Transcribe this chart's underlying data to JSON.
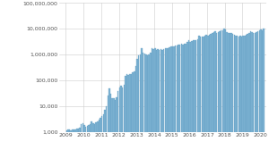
{
  "title": "",
  "xlabel": "",
  "ylabel": "",
  "bar_color": "#7fb3d3",
  "bar_edge_color": "#5a9abf",
  "background_color": "#ffffff",
  "grid_color": "#cccccc",
  "ylim": [
    1000,
    100000000
  ],
  "xlim": [
    2008.62,
    2020.35
  ],
  "yticks": [
    1000,
    10000,
    100000,
    1000000,
    10000000,
    100000000
  ],
  "ytick_labels": [
    "1,000",
    "10,000",
    "100,000",
    "1,000,000",
    "10,000,000",
    "100,000,000"
  ],
  "xtick_years": [
    2009,
    2010,
    2011,
    2012,
    2013,
    2014,
    2015,
    2016,
    2017,
    2018,
    2019,
    2020
  ],
  "monthly_data": {
    "2009-01": 1200,
    "2009-02": 1300,
    "2009-03": 1250,
    "2009-04": 1200,
    "2009-05": 1300,
    "2009-06": 1250,
    "2009-07": 1300,
    "2009-08": 1350,
    "2009-09": 1400,
    "2009-10": 1500,
    "2009-11": 2000,
    "2009-12": 2200,
    "2010-01": 1800,
    "2010-02": 1600,
    "2010-03": 1700,
    "2010-04": 1900,
    "2010-05": 2000,
    "2010-06": 2500,
    "2010-07": 2200,
    "2010-08": 2100,
    "2010-09": 2300,
    "2010-10": 2500,
    "2010-11": 3000,
    "2010-12": 3500,
    "2011-01": 4000,
    "2011-02": 5000,
    "2011-03": 7000,
    "2011-04": 10000,
    "2011-05": 25000,
    "2011-06": 50000,
    "2011-07": 30000,
    "2011-08": 20000,
    "2011-09": 20000,
    "2011-10": 18000,
    "2011-11": 22000,
    "2011-12": 40000,
    "2012-01": 55000,
    "2012-02": 60000,
    "2012-03": 55000,
    "2012-04": 65000,
    "2012-05": 150000,
    "2012-06": 180000,
    "2012-07": 160000,
    "2012-08": 170000,
    "2012-09": 180000,
    "2012-10": 200000,
    "2012-11": 220000,
    "2012-12": 350000,
    "2013-01": 700000,
    "2013-02": 900000,
    "2013-03": 1000000,
    "2013-04": 1800000,
    "2013-05": 1200000,
    "2013-06": 1100000,
    "2013-07": 1000000,
    "2013-08": 900000,
    "2013-09": 1000000,
    "2013-10": 1200000,
    "2013-11": 1800000,
    "2013-12": 1600000,
    "2014-01": 1700000,
    "2014-02": 1500000,
    "2014-03": 1600000,
    "2014-04": 1500000,
    "2014-05": 1600000,
    "2014-06": 1500000,
    "2014-07": 1600000,
    "2014-08": 1700000,
    "2014-09": 1700000,
    "2014-10": 1800000,
    "2014-11": 1900000,
    "2014-12": 2000000,
    "2015-01": 2000000,
    "2015-02": 2100000,
    "2015-03": 2200000,
    "2015-04": 2300000,
    "2015-05": 2400000,
    "2015-06": 2500000,
    "2015-07": 2600000,
    "2015-08": 2500000,
    "2015-09": 2600000,
    "2015-10": 2700000,
    "2015-11": 3000000,
    "2015-12": 3500000,
    "2016-01": 3200000,
    "2016-02": 3300000,
    "2016-03": 3500000,
    "2016-04": 3600000,
    "2016-05": 3700000,
    "2016-06": 4000000,
    "2016-07": 5500000,
    "2016-08": 5000000,
    "2016-09": 4800000,
    "2016-10": 5000000,
    "2016-11": 5500000,
    "2016-12": 6000000,
    "2017-01": 5500000,
    "2017-02": 6000000,
    "2017-03": 6500000,
    "2017-04": 7000000,
    "2017-05": 7500000,
    "2017-06": 8000000,
    "2017-07": 7000000,
    "2017-08": 7500000,
    "2017-09": 8000000,
    "2017-10": 8500000,
    "2017-11": 9000000,
    "2017-12": 10000000,
    "2018-01": 9500000,
    "2018-02": 7500000,
    "2018-03": 7000000,
    "2018-04": 7000000,
    "2018-05": 7000000,
    "2018-06": 6500000,
    "2018-07": 6000000,
    "2018-08": 5500000,
    "2018-09": 5500000,
    "2018-10": 5000000,
    "2018-11": 5500000,
    "2018-12": 5000000,
    "2019-01": 5500000,
    "2019-02": 5500000,
    "2019-03": 6000000,
    "2019-04": 6500000,
    "2019-05": 7000000,
    "2019-06": 8000000,
    "2019-07": 7500000,
    "2019-08": 7000000,
    "2019-09": 7000000,
    "2019-10": 7500000,
    "2019-11": 8000000,
    "2019-12": 9000000,
    "2020-01": 9500000,
    "2020-02": 9000000,
    "2020-03": 10000000
  }
}
